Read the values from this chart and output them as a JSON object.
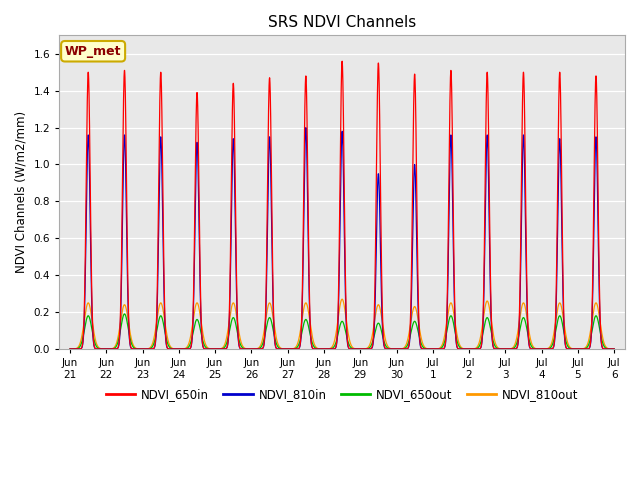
{
  "title": "SRS NDVI Channels",
  "ylabel": "NDVI Channels (W/m2/mm)",
  "ylim": [
    0.0,
    1.7
  ],
  "yticks": [
    0.0,
    0.2,
    0.4,
    0.6,
    0.8,
    1.0,
    1.2,
    1.4,
    1.6
  ],
  "colors": {
    "NDVI_650in": "#ff0000",
    "NDVI_810in": "#0000cc",
    "NDVI_650out": "#00bb00",
    "NDVI_810out": "#ff9900"
  },
  "legend_label": "WP_met",
  "background_color": "#e8e8e8",
  "peaks_650in": [
    1.5,
    1.51,
    1.5,
    1.39,
    1.44,
    1.47,
    1.48,
    1.56,
    1.55,
    1.49,
    1.51,
    1.5,
    1.5,
    1.5,
    1.48
  ],
  "peaks_810in": [
    1.16,
    1.16,
    1.15,
    1.12,
    1.14,
    1.15,
    1.2,
    1.18,
    0.95,
    1.0,
    1.16,
    1.16,
    1.16,
    1.14,
    1.15
  ],
  "peaks_650out": [
    0.18,
    0.19,
    0.18,
    0.16,
    0.17,
    0.17,
    0.16,
    0.15,
    0.14,
    0.15,
    0.18,
    0.17,
    0.17,
    0.18,
    0.18
  ],
  "peaks_810out": [
    0.25,
    0.24,
    0.25,
    0.25,
    0.25,
    0.25,
    0.25,
    0.27,
    0.24,
    0.23,
    0.25,
    0.26,
    0.25,
    0.25,
    0.25
  ],
  "xlabels": [
    "Jun 21",
    "Jun 22",
    "Jun 23",
    "Jun 24",
    "Jun 25",
    "Jun 26",
    "Jun 27",
    "Jun 28",
    "Jun 29",
    "Jun 30",
    "Jul 1",
    "Jul 2",
    "Jul 3",
    "Jul 4",
    "Jul 5",
    "Jul 6"
  ],
  "figsize": [
    6.4,
    4.8
  ],
  "dpi": 100
}
